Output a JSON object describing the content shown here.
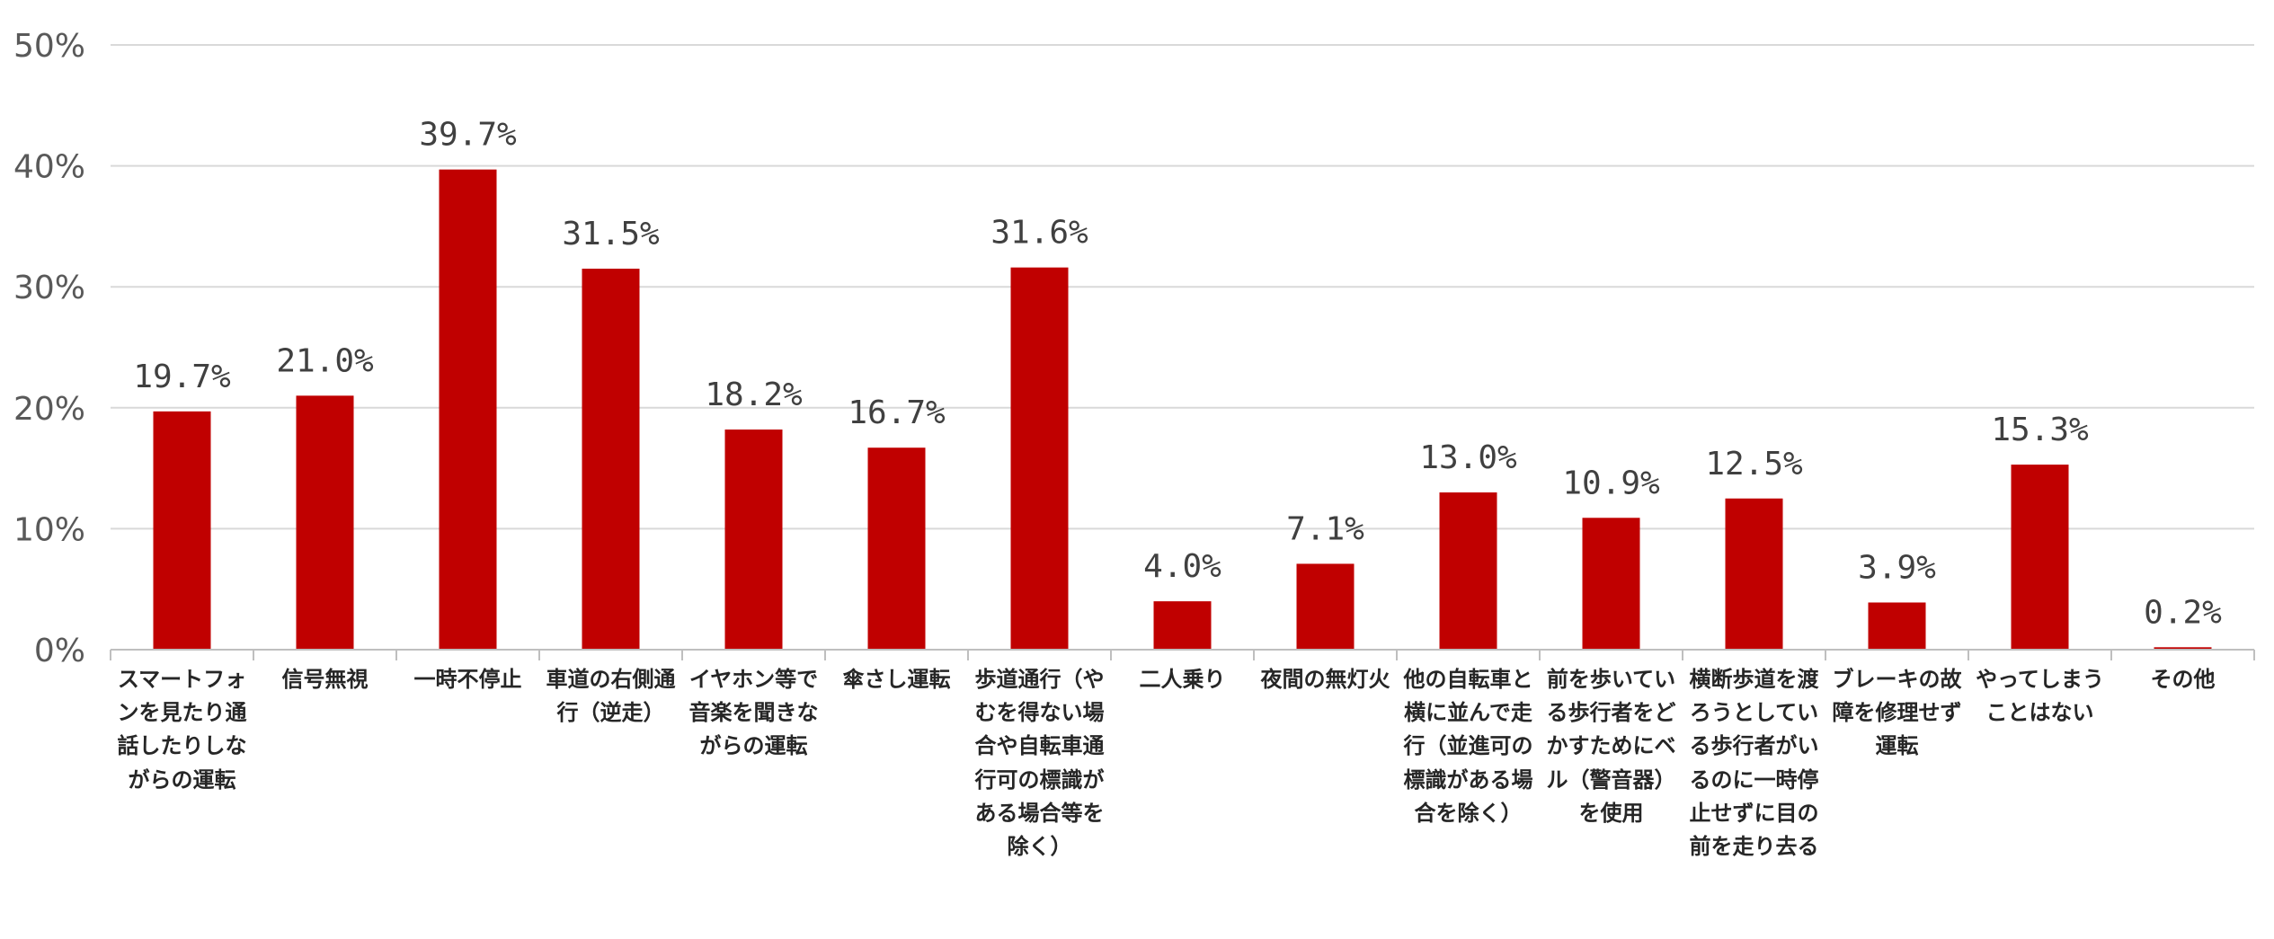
{
  "chart_data": {
    "type": "bar",
    "categories": [
      "スマートフォンを見たり通話したりしながらの運転",
      "信号無視",
      "一時不停止",
      "車道の右側通行（逆走）",
      "イヤホン等で音楽を聞きながらの運転",
      "傘さし運転",
      "歩道通行（やむを得ない場合や自転車通行可の標識がある場合等を除く）",
      "二人乗り",
      "夜間の無灯火",
      "他の自転車と横に並んで走行（並進可の標識がある場合を除く）",
      "前を歩いている歩行者をどかすためにベル（警音器）を使用",
      "横断歩道を渡ろうとしている歩行者がいるのに一時停止せずに目の前を走り去る",
      "ブレーキの故障を修理せず運転",
      "やってしまうことはない",
      "その他"
    ],
    "values": [
      19.7,
      21.0,
      39.7,
      31.5,
      18.2,
      16.7,
      31.6,
      4.0,
      7.1,
      13.0,
      10.9,
      12.5,
      3.9,
      15.3,
      0.2
    ],
    "data_labels": [
      "19.7%",
      "21.0%",
      "39.7%",
      "31.5%",
      "18.2%",
      "16.7%",
      "31.6%",
      "4.0%",
      "7.1%",
      "13.0%",
      "10.9%",
      "12.5%",
      "3.9%",
      "15.3%",
      "0.2%"
    ],
    "yticks": [
      "0%",
      "10%",
      "20%",
      "30%",
      "40%",
      "50%"
    ],
    "ylim": [
      0,
      50
    ],
    "grid": true,
    "bar_color": "#C00000",
    "title": "",
    "xlabel": "",
    "ylabel": ""
  }
}
